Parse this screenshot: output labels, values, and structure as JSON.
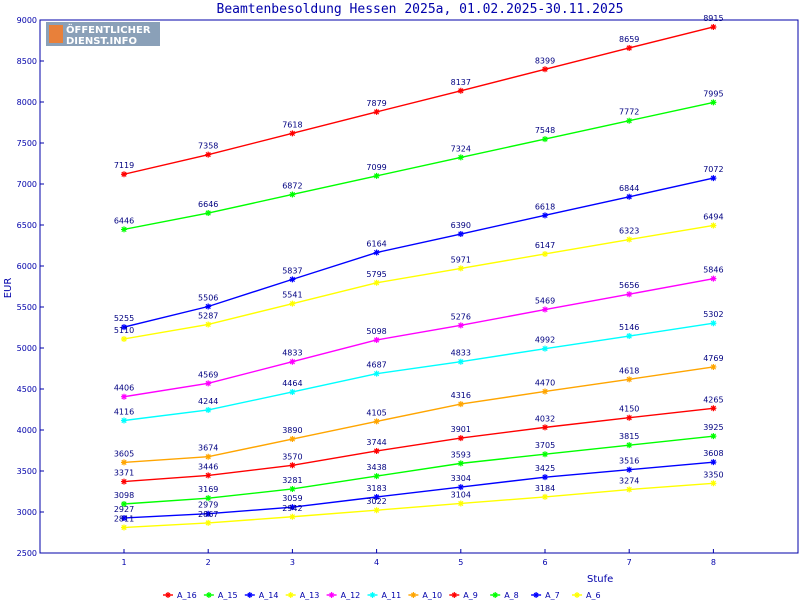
{
  "logo": {
    "line1": "ÖFFENTLICHER",
    "line2": "DIENST.INFO"
  },
  "chart_data": {
    "type": "line",
    "title": "Beamtenbesoldung Hessen 2025a, 01.02.2025-30.11.2025",
    "xlabel": "Stufe",
    "ylabel": "EUR",
    "x": [
      1,
      2,
      3,
      4,
      5,
      6,
      7,
      8
    ],
    "ylim": [
      2500,
      9000
    ],
    "yticks": [
      2500,
      3000,
      3500,
      4000,
      4500,
      5000,
      5500,
      6000,
      6500,
      7000,
      7500,
      8000,
      8500,
      9000
    ],
    "grid": false,
    "legend": "bottom",
    "series": [
      {
        "name": "A_16",
        "color": "#ff0000",
        "values": [
          7119,
          7358,
          7618,
          7879,
          8137,
          8399,
          8659,
          8915
        ]
      },
      {
        "name": "A_15",
        "color": "#00ff00",
        "values": [
          6446,
          6646,
          6872,
          7099,
          7324,
          7548,
          7772,
          7995
        ]
      },
      {
        "name": "A_14",
        "color": "#0000ff",
        "values": [
          5255,
          5506,
          5837,
          6164,
          6390,
          6618,
          6844,
          7072
        ]
      },
      {
        "name": "A_13",
        "color": "#ffff00",
        "values": [
          5110,
          5287,
          5541,
          5795,
          5971,
          6147,
          6323,
          6494
        ]
      },
      {
        "name": "A_12",
        "color": "#ff00ff",
        "values": [
          4406,
          4569,
          4833,
          5098,
          5276,
          5469,
          5656,
          5846
        ]
      },
      {
        "name": "A_11",
        "color": "#00ffff",
        "values": [
          4116,
          4244,
          4464,
          4687,
          4833,
          4992,
          5146,
          5302
        ]
      },
      {
        "name": "A_10",
        "color": "#ffa500",
        "values": [
          3605,
          3674,
          3890,
          4105,
          4316,
          4470,
          4618,
          4769
        ]
      },
      {
        "name": "A_9",
        "color": "#ff0000",
        "values": [
          3371,
          3446,
          3570,
          3744,
          3901,
          4032,
          4150,
          4265
        ]
      },
      {
        "name": "A_8",
        "color": "#00ff00",
        "values": [
          3098,
          3169,
          3281,
          3438,
          3593,
          3705,
          3815,
          3925
        ]
      },
      {
        "name": "A_7",
        "color": "#0000ff",
        "values": [
          2927,
          2979,
          3059,
          3183,
          3304,
          3425,
          3516,
          3608
        ]
      },
      {
        "name": "A_6",
        "color": "#ffff00",
        "values": [
          2811,
          2867,
          2942,
          3022,
          3104,
          3184,
          3274,
          3350
        ]
      }
    ]
  }
}
